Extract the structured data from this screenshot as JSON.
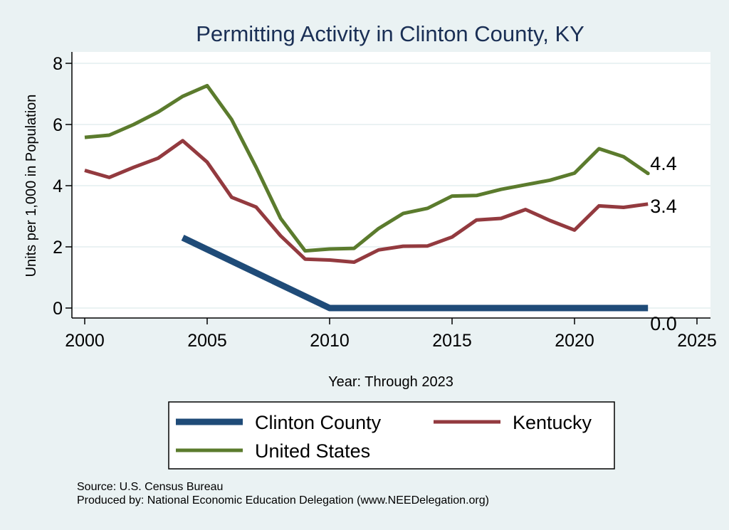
{
  "chart_data": {
    "type": "line",
    "title": "Permitting Activity in Clinton County, KY",
    "xlabel": "Year: Through 2023",
    "ylabel": "Units per 1,000 in Population",
    "xlim": [
      2000,
      2025
    ],
    "ylim": [
      0,
      8
    ],
    "xticks": [
      2000,
      2005,
      2010,
      2015,
      2020,
      2025
    ],
    "yticks": [
      0,
      2,
      4,
      6,
      8
    ],
    "grid": true,
    "legend_position": "bottom",
    "series": [
      {
        "name": "Clinton County",
        "color": "#1f4b78",
        "x": [
          2004,
          2010,
          2011,
          2012,
          2013,
          2014,
          2015,
          2016,
          2017,
          2018,
          2019,
          2020,
          2021,
          2022,
          2023
        ],
        "values": [
          2.3,
          0,
          0,
          0,
          0,
          0,
          0,
          0,
          0,
          0,
          0,
          0,
          0,
          0,
          0
        ],
        "end_label": "0.0"
      },
      {
        "name": "Kentucky",
        "color": "#933a3f",
        "x": [
          2000,
          2001,
          2002,
          2003,
          2004,
          2005,
          2006,
          2007,
          2008,
          2009,
          2010,
          2011,
          2012,
          2013,
          2014,
          2015,
          2016,
          2017,
          2018,
          2019,
          2020,
          2021,
          2022,
          2023
        ],
        "values": [
          4.5,
          4.27,
          4.6,
          4.9,
          5.47,
          4.77,
          3.62,
          3.3,
          2.36,
          1.6,
          1.57,
          1.5,
          1.9,
          2.02,
          2.03,
          2.32,
          2.88,
          2.93,
          3.22,
          2.86,
          2.55,
          3.34,
          3.29,
          3.4
        ],
        "end_label": "3.4"
      },
      {
        "name": "United States",
        "color": "#5b7b2d",
        "x": [
          2000,
          2001,
          2002,
          2003,
          2004,
          2005,
          2006,
          2007,
          2008,
          2009,
          2010,
          2011,
          2012,
          2013,
          2014,
          2015,
          2016,
          2017,
          2018,
          2019,
          2020,
          2021,
          2022,
          2023
        ],
        "values": [
          5.58,
          5.65,
          6.0,
          6.41,
          6.92,
          7.27,
          6.16,
          4.6,
          2.93,
          1.87,
          1.93,
          1.95,
          2.6,
          3.09,
          3.26,
          3.66,
          3.68,
          3.88,
          4.03,
          4.18,
          4.41,
          5.21,
          4.95,
          4.4
        ],
        "end_label": "4.4"
      }
    ]
  },
  "footer": {
    "source": "Source: U.S. Census Bureau",
    "produced_by": "Produced by: National Economic Education Delegation (www.NEEDelegation.org)"
  },
  "colors": {
    "background": "#eaf2f3",
    "plot_background": "#ffffff",
    "grid": "#e4eeef"
  }
}
